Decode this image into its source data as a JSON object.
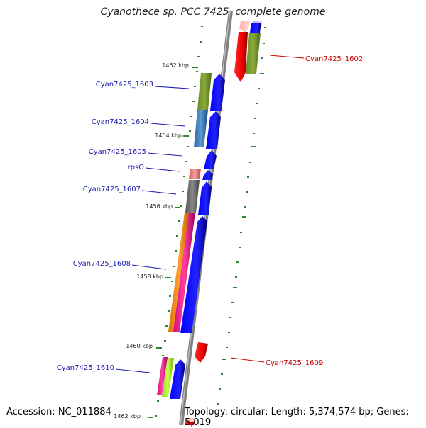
{
  "title": "Cyanothece sp. PCC 7425, complete genome",
  "accession": "Accession: NC_011884",
  "topology": "Topology: circular; Length: 5,374,574 bp; Genes: 5,019",
  "ticks": [
    "1452 kbp",
    "1454 kbp",
    "1456 kbp",
    "1458 kbp",
    "1460 kbp",
    "1462 kbp"
  ],
  "gene_labels_left": [
    "Cyan7425_1603",
    "Cyan7425_1604",
    "Cyan7425_1605",
    "rpsO",
    "Cyan7425_1607",
    "Cyan7425_1608",
    "Cyan7425_1610"
  ],
  "gene_labels_right": [
    "Cyan7425_1602",
    "Cyan7425_1609"
  ],
  "colors": {
    "backbone": "#808080",
    "forward_gene": "#0000ee",
    "reverse_gene": "#ee0000",
    "label_forward": "#1a1ab0",
    "label_reverse": "#cc0000",
    "tick_marks": "#2a8a2a"
  }
}
